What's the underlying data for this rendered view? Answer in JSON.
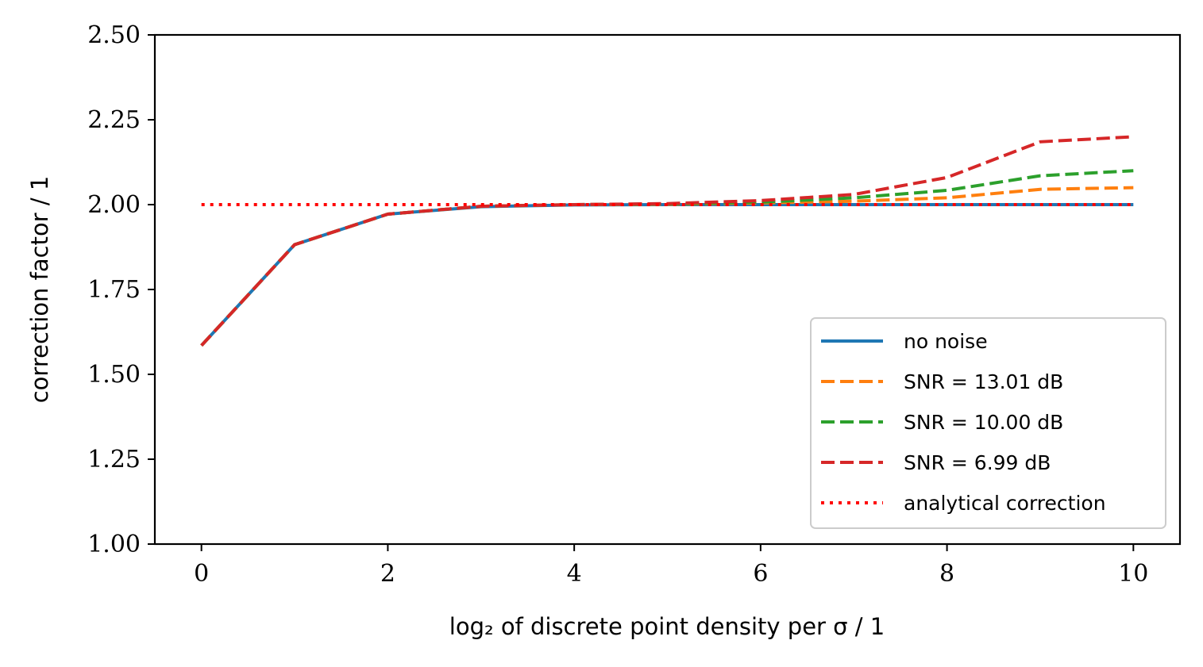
{
  "chart_data": {
    "type": "line",
    "xlabel": "log₂ of discrete point density per σ / 1",
    "ylabel": "correction factor / 1",
    "xlim": [
      -0.5,
      10.5
    ],
    "ylim": [
      1.0,
      2.5
    ],
    "x_ticks": [
      0,
      2,
      4,
      6,
      8,
      10
    ],
    "y_ticks": [
      1.0,
      1.25,
      1.5,
      1.75,
      2.0,
      2.25,
      2.5
    ],
    "x_tick_labels": [
      "0",
      "2",
      "4",
      "6",
      "8",
      "10"
    ],
    "y_tick_labels": [
      "1.00",
      "1.25",
      "1.50",
      "1.75",
      "2.00",
      "2.25",
      "2.50"
    ],
    "grid": false,
    "legend_position": "lower-right",
    "x": [
      0,
      1,
      2,
      3,
      4,
      5,
      6,
      7,
      8,
      9,
      10
    ],
    "series": [
      {
        "name": "no noise",
        "style": "solid",
        "color": "#1f77b4",
        "values": [
          1.585,
          1.882,
          1.972,
          1.994,
          1.999,
          2.0,
          2.0,
          2.0,
          2.0,
          2.0,
          2.0
        ]
      },
      {
        "name": "SNR = 13.01 dB",
        "style": "dashed",
        "color": "#ff7f0e",
        "values": [
          1.585,
          1.882,
          1.972,
          1.995,
          2.0,
          2.001,
          2.005,
          2.01,
          2.02,
          2.045,
          2.05
        ]
      },
      {
        "name": "SNR = 10.00 dB",
        "style": "dashed",
        "color": "#2ca02c",
        "values": [
          1.585,
          1.882,
          1.972,
          1.995,
          2.0,
          2.002,
          2.007,
          2.02,
          2.042,
          2.085,
          2.1
        ]
      },
      {
        "name": "SNR = 6.99 dB",
        "style": "dashed",
        "color": "#d62728",
        "values": [
          1.585,
          1.882,
          1.972,
          1.995,
          2.0,
          2.003,
          2.012,
          2.03,
          2.08,
          2.185,
          2.2
        ]
      },
      {
        "name": "analytical correction",
        "style": "dotted",
        "color": "#ff0000",
        "values": [
          2.0,
          2.0,
          2.0,
          2.0,
          2.0,
          2.0,
          2.0,
          2.0,
          2.0,
          2.0,
          2.0
        ]
      }
    ]
  }
}
